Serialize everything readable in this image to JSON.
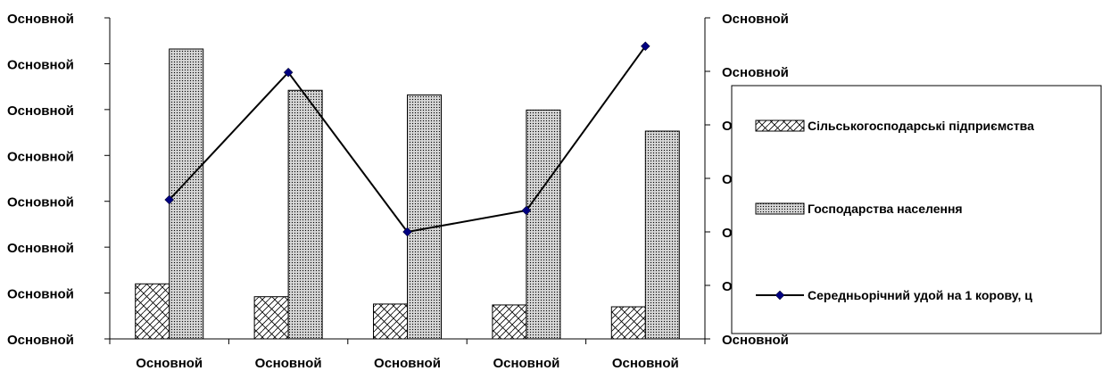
{
  "chart_data": {
    "type": "bar",
    "categories": [
      "Основной",
      "Основной",
      "Основной",
      "Основной",
      "Основной"
    ],
    "series": [
      {
        "name": "Сільськогосподарські підприємства",
        "kind": "bar",
        "pattern": "crosshatch",
        "values": [
          1.2,
          0.92,
          0.76,
          0.74,
          0.7
        ]
      },
      {
        "name": "Господарства населення",
        "kind": "bar",
        "pattern": "dots",
        "values": [
          6.32,
          5.42,
          5.32,
          4.99,
          4.53
        ]
      },
      {
        "name": "Середньорічний удой на 1 корову, ц",
        "kind": "line",
        "axis": "right",
        "color": "#000080",
        "values": [
          2.6,
          4.98,
          2.0,
          2.4,
          5.47
        ]
      }
    ],
    "left_axis": {
      "tick_labels": [
        "Основной",
        "Основной",
        "Основной",
        "Основной",
        "Основной",
        "Основной",
        "Основной",
        "Основной"
      ],
      "ylim": [
        0,
        7
      ]
    },
    "right_axis": {
      "tick_labels": [
        "Основной",
        "Основной",
        "Основной",
        "Основной",
        "Основной",
        "Основной",
        "Основной"
      ],
      "ylim": [
        0,
        6
      ]
    },
    "title": "",
    "xlabel": "",
    "ylabel": "",
    "legend_position": "right"
  }
}
